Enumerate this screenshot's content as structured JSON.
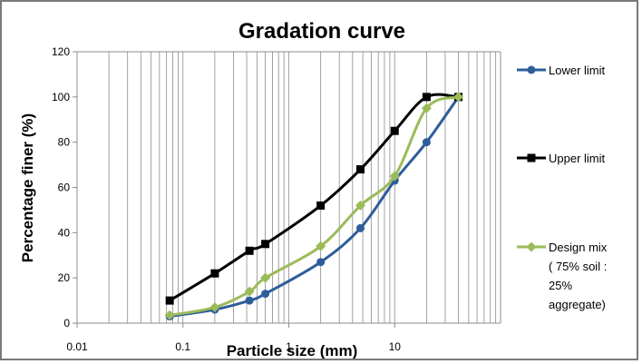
{
  "chart_data": {
    "type": "line",
    "title": "Gradation curve",
    "xlabel": "Particle size (mm)",
    "ylabel": "Percentage finer (%)",
    "xscale": "log",
    "xlim": [
      0.01,
      100
    ],
    "ylim": [
      0,
      120
    ],
    "x_ticks": [
      "0.01",
      "0.1",
      "1",
      "10"
    ],
    "y_ticks": [
      "0",
      "20",
      "40",
      "60",
      "80",
      "100",
      "120"
    ],
    "grid": "vertical log gridlines",
    "legend_position": "right",
    "series": [
      {
        "name": "Lower limit",
        "color": "#2e5d9a",
        "marker": "circle",
        "x": [
          0.075,
          0.2,
          0.425,
          0.6,
          2,
          4.75,
          10,
          20,
          40
        ],
        "y": [
          3,
          6,
          10,
          13,
          27,
          42,
          63,
          80,
          100
        ]
      },
      {
        "name": "Upper limit",
        "color": "#000000",
        "marker": "square",
        "x": [
          0.075,
          0.2,
          0.425,
          0.6,
          2,
          4.75,
          10,
          20,
          40
        ],
        "y": [
          10,
          22,
          32,
          35,
          52,
          68,
          85,
          100,
          100
        ]
      },
      {
        "name": "Design mix ( 75% soil : 25% aggregate)",
        "legend_lines": [
          "Design mix",
          "( 75% soil :",
          "25%",
          "aggregate)"
        ],
        "color": "#9bbb59",
        "marker": "diamond",
        "x": [
          0.075,
          0.2,
          0.425,
          0.6,
          2,
          4.75,
          10,
          20,
          40
        ],
        "y": [
          3.5,
          7,
          14,
          20,
          34,
          52,
          65,
          95,
          100
        ]
      }
    ]
  }
}
